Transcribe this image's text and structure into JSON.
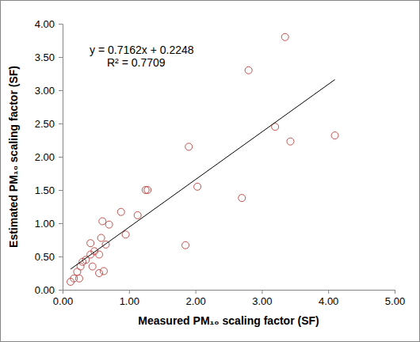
{
  "chart_data": {
    "type": "scatter",
    "x_label": "Measured PM₁₀ scaling factor (SF)",
    "y_label": "Estimated PM₁₀ scaling factor (SF)",
    "annotations": [
      {
        "text": "y = 0.7162x + 0.2248"
      },
      {
        "text": "R² = 0.7709"
      }
    ],
    "xlim": [
      0,
      5
    ],
    "ylim": [
      0,
      4
    ],
    "xticks": [
      {
        "value": 0,
        "label": "0.00"
      },
      {
        "value": 1,
        "label": "1.00"
      },
      {
        "value": 2,
        "label": "2.00"
      },
      {
        "value": 3,
        "label": "3.00"
      },
      {
        "value": 4,
        "label": "4.00"
      },
      {
        "value": 5,
        "label": "5.00"
      }
    ],
    "yticks": [
      {
        "value": 0,
        "label": "0.00"
      },
      {
        "value": 0.5,
        "label": "0.50"
      },
      {
        "value": 1,
        "label": "1.00"
      },
      {
        "value": 1.5,
        "label": "1.50"
      },
      {
        "value": 2,
        "label": "2.00"
      },
      {
        "value": 2.5,
        "label": "2.50"
      },
      {
        "value": 3,
        "label": "3.00"
      },
      {
        "value": 3.5,
        "label": "3.50"
      },
      {
        "value": 4,
        "label": "4.00"
      }
    ],
    "grid": false,
    "series": [
      {
        "type": "scatter",
        "marker": "circle",
        "color": "#c0504d",
        "x": [
          0.12,
          0.17,
          0.22,
          0.25,
          0.27,
          0.3,
          0.35,
          0.42,
          0.42,
          0.45,
          0.48,
          0.55,
          0.55,
          0.58,
          0.6,
          0.62,
          0.65,
          0.7,
          0.88,
          0.95,
          1.13,
          1.25,
          1.28,
          1.85,
          1.9,
          2.03,
          2.7,
          2.8,
          3.2,
          3.35,
          3.43,
          4.1
        ],
        "values": [
          0.12,
          0.17,
          0.27,
          0.17,
          0.35,
          0.42,
          0.45,
          0.53,
          0.7,
          0.35,
          0.58,
          0.53,
          0.25,
          0.78,
          1.03,
          0.28,
          0.68,
          0.98,
          1.17,
          0.83,
          1.12,
          1.5,
          1.5,
          0.67,
          2.15,
          1.55,
          1.38,
          3.3,
          2.45,
          3.8,
          2.23,
          2.32
        ]
      },
      {
        "type": "line",
        "line_style": "solid",
        "color": "#000000",
        "x": [
          0.12,
          4.1
        ],
        "values": [
          0.31,
          3.16
        ]
      }
    ]
  }
}
